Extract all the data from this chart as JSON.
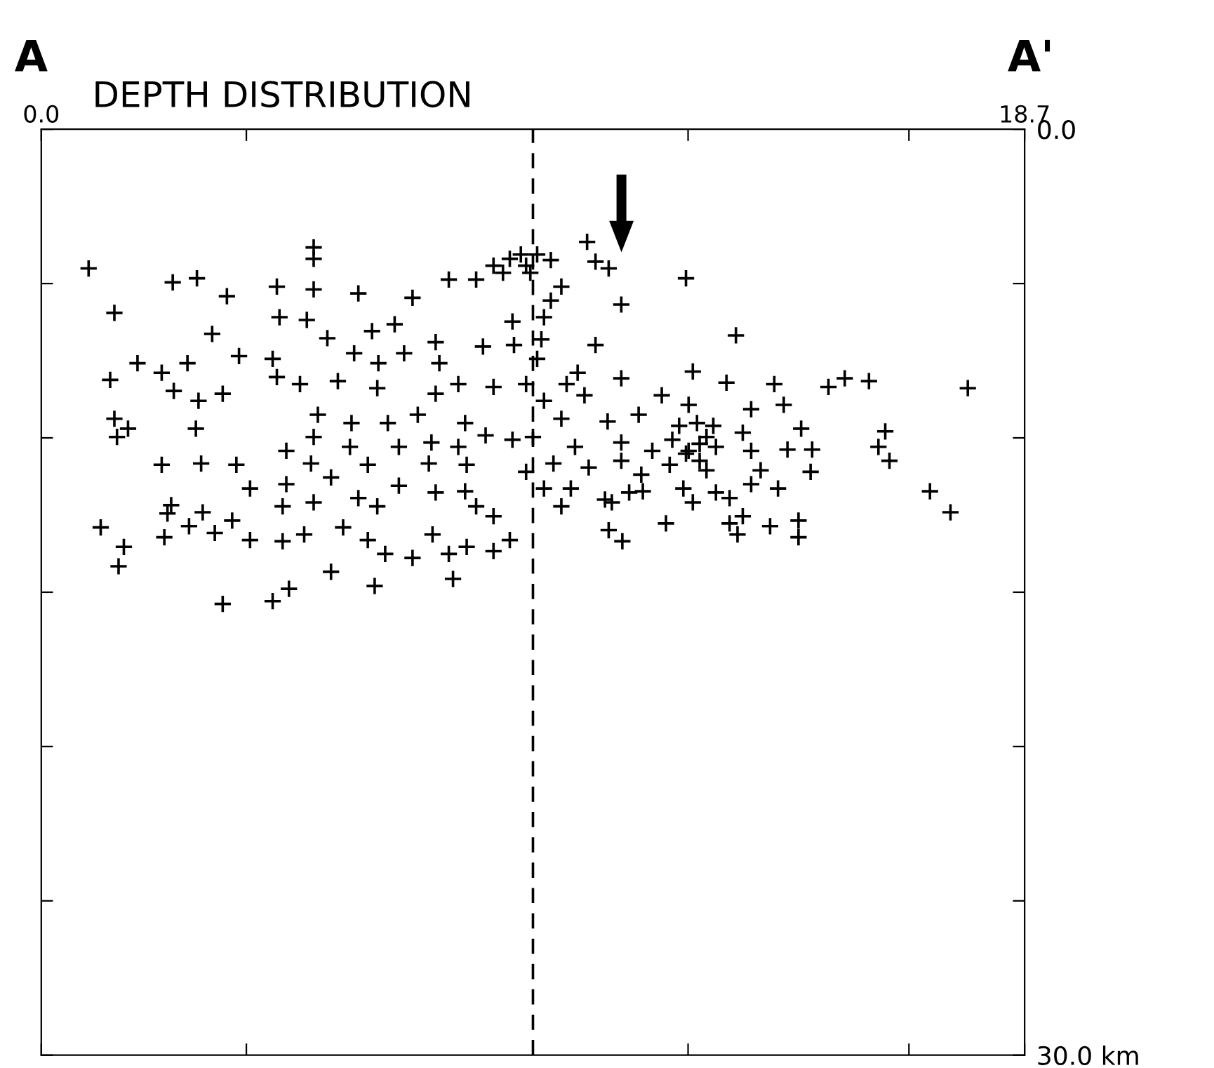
{
  "chart_data": {
    "type": "scatter",
    "title": "DEPTH DISTRIBUTION",
    "annotations": [
      "A",
      "A'"
    ],
    "xlim": [
      0,
      18.7
    ],
    "xticks": [
      {
        "value": 0,
        "label": "0.0"
      },
      {
        "value": 3.9,
        "label": null
      },
      {
        "value": 12.3,
        "label": null
      },
      {
        "value": 16.5,
        "label": null
      },
      {
        "value": 18.7,
        "label": "18.7"
      }
    ],
    "ylim": [
      30,
      0
    ],
    "yticks": [
      {
        "value": 0,
        "label": "0.0"
      },
      {
        "value": 5,
        "label": null
      },
      {
        "value": 10,
        "label": null
      },
      {
        "value": 15,
        "label": null
      },
      {
        "value": 20,
        "label": null
      },
      {
        "value": 25,
        "label": null
      },
      {
        "value": 30,
        "label": "30.0 km"
      }
    ],
    "ref_lines": [
      {
        "axis": "x",
        "value": 9.35,
        "label": null,
        "color": "#000000",
        "line_style": "dashed"
      }
    ],
    "marker": "cross",
    "grid": false,
    "legend": false,
    "series": [
      {
        "color": "#000000",
        "x": [
          0.9,
          5.18,
          5.18,
          2.5,
          2.96,
          1.39,
          3.53,
          4.48,
          5.18,
          6.03,
          7.06,
          7.75,
          8.6,
          9.22,
          3.25,
          4.53,
          5.05,
          5.44,
          6.29,
          6.72,
          7.5,
          8.96,
          8.99,
          1.83,
          2.29,
          2.78,
          3.76,
          4.4,
          5.95,
          6.41,
          6.9,
          7.57,
          8.4,
          1.31,
          2.52,
          2.99,
          3.45,
          4.48,
          4.92,
          5.64,
          6.39,
          7.5,
          7.93,
          8.6,
          9.22,
          1.39,
          1.65,
          1.44,
          2.94,
          5.26,
          5.9,
          6.59,
          7.16,
          8.06,
          8.45,
          8.96,
          4.66,
          5.18,
          5.87,
          6.8,
          7.42,
          7.93,
          2.29,
          3.04,
          3.71,
          5.13,
          6.21,
          7.37,
          8.09,
          9.22,
          3.97,
          4.66,
          5.51,
          6.03,
          6.8,
          7.5,
          8.06,
          2.47,
          2.4,
          3.07,
          4.59,
          5.18,
          6.39,
          8.27,
          8.6,
          1.13,
          2.34,
          2.81,
          3.3,
          3.63,
          3.97,
          4.59,
          5.0,
          5.74,
          6.21,
          6.54,
          7.06,
          7.44,
          7.75,
          8.09,
          8.6,
          8.91,
          1.57,
          1.47,
          5.51,
          6.34,
          7.83,
          3.45,
          4.4,
          4.71,
          10.38,
          10.54,
          10.79,
          12.26,
          9.89,
          9.69,
          11.03,
          9.56,
          13.21,
          9.51,
          10.54,
          9.43,
          9.99,
          10.2,
          11.03,
          12.39,
          13.03,
          13.94,
          14.97,
          15.28,
          15.74,
          17.62,
          9.56,
          10.33,
          11.8,
          12.31,
          13.5,
          14.12,
          9.89,
          10.77,
          11.36,
          12.47,
          12.65,
          13.34,
          14.45,
          16.05,
          9.35,
          10.15,
          11.03,
          11.62,
          12.31,
          12.83,
          13.5,
          14.19,
          14.66,
          15.92,
          16.13,
          9.74,
          11.03,
          11.95,
          12.65,
          13.68,
          14.63,
          10.41,
          11.41,
          9.56,
          10.07,
          10.72,
          11.18,
          12.21,
          12.83,
          13.5,
          14.01,
          9.89,
          10.85,
          11.44,
          12.39,
          13.09,
          11.88,
          13.09,
          13.34,
          13.86,
          14.4,
          14.4,
          13.24,
          10.79,
          11.05,
          16.9,
          17.29,
          12.13,
          12.52,
          12.26,
          12.78,
          12.0,
          12.52,
          8.91,
          9.12,
          9.43,
          9.69,
          9.3,
          8.78,
          8.27
        ],
        "values": [
          4.51,
          3.83,
          4.2,
          4.96,
          4.83,
          5.95,
          5.41,
          5.1,
          5.19,
          5.32,
          5.46,
          4.87,
          4.42,
          4.42,
          6.63,
          6.09,
          6.18,
          6.77,
          6.54,
          6.32,
          6.9,
          6.23,
          6.99,
          7.58,
          7.89,
          7.58,
          7.35,
          7.44,
          7.26,
          7.58,
          7.26,
          7.58,
          7.04,
          8.12,
          8.48,
          8.8,
          8.57,
          8.03,
          8.26,
          8.16,
          8.39,
          8.57,
          8.26,
          8.35,
          8.26,
          9.38,
          9.7,
          9.97,
          9.7,
          9.25,
          9.52,
          9.52,
          9.25,
          9.52,
          9.92,
          10.06,
          10.42,
          9.97,
          10.29,
          10.29,
          10.15,
          10.29,
          10.87,
          10.83,
          10.87,
          10.83,
          10.87,
          10.83,
          10.87,
          11.1,
          11.64,
          11.5,
          11.28,
          11.95,
          11.55,
          11.77,
          11.73,
          12.18,
          12.45,
          12.41,
          12.22,
          12.09,
          12.22,
          12.22,
          12.54,
          12.9,
          13.22,
          12.86,
          13.08,
          12.68,
          13.31,
          13.35,
          13.13,
          12.9,
          13.31,
          13.76,
          13.89,
          13.13,
          13.76,
          13.53,
          13.67,
          13.31,
          13.53,
          14.16,
          14.34,
          14.8,
          14.57,
          15.38,
          15.29,
          14.89,
          3.65,
          4.29,
          4.51,
          4.83,
          5.1,
          5.55,
          5.68,
          6.09,
          6.68,
          6.81,
          6.99,
          7.44,
          8.26,
          7.89,
          8.07,
          7.85,
          8.21,
          8.26,
          8.35,
          8.07,
          8.16,
          8.39,
          8.8,
          8.62,
          8.62,
          8.93,
          9.07,
          8.93,
          9.38,
          9.47,
          9.25,
          9.52,
          9.97,
          9.83,
          9.7,
          9.79,
          9.97,
          10.29,
          10.15,
          10.42,
          10.42,
          10.29,
          10.42,
          10.38,
          10.38,
          10.29,
          10.74,
          10.83,
          10.74,
          10.87,
          11.05,
          11.05,
          11.1,
          10.96,
          11.19,
          11.64,
          11.64,
          12.0,
          11.77,
          11.64,
          11.77,
          11.5,
          11.64,
          12.22,
          12.09,
          11.73,
          12.09,
          11.95,
          12.77,
          12.77,
          12.54,
          12.86,
          12.68,
          13.22,
          13.13,
          12.99,
          13.35,
          11.73,
          12.41,
          9.61,
          10.19,
          10.51,
          9.61,
          10.06,
          10.74,
          4.2,
          4.06,
          4.06,
          4.24,
          4.65,
          4.65,
          4.87
        ]
      }
    ]
  }
}
